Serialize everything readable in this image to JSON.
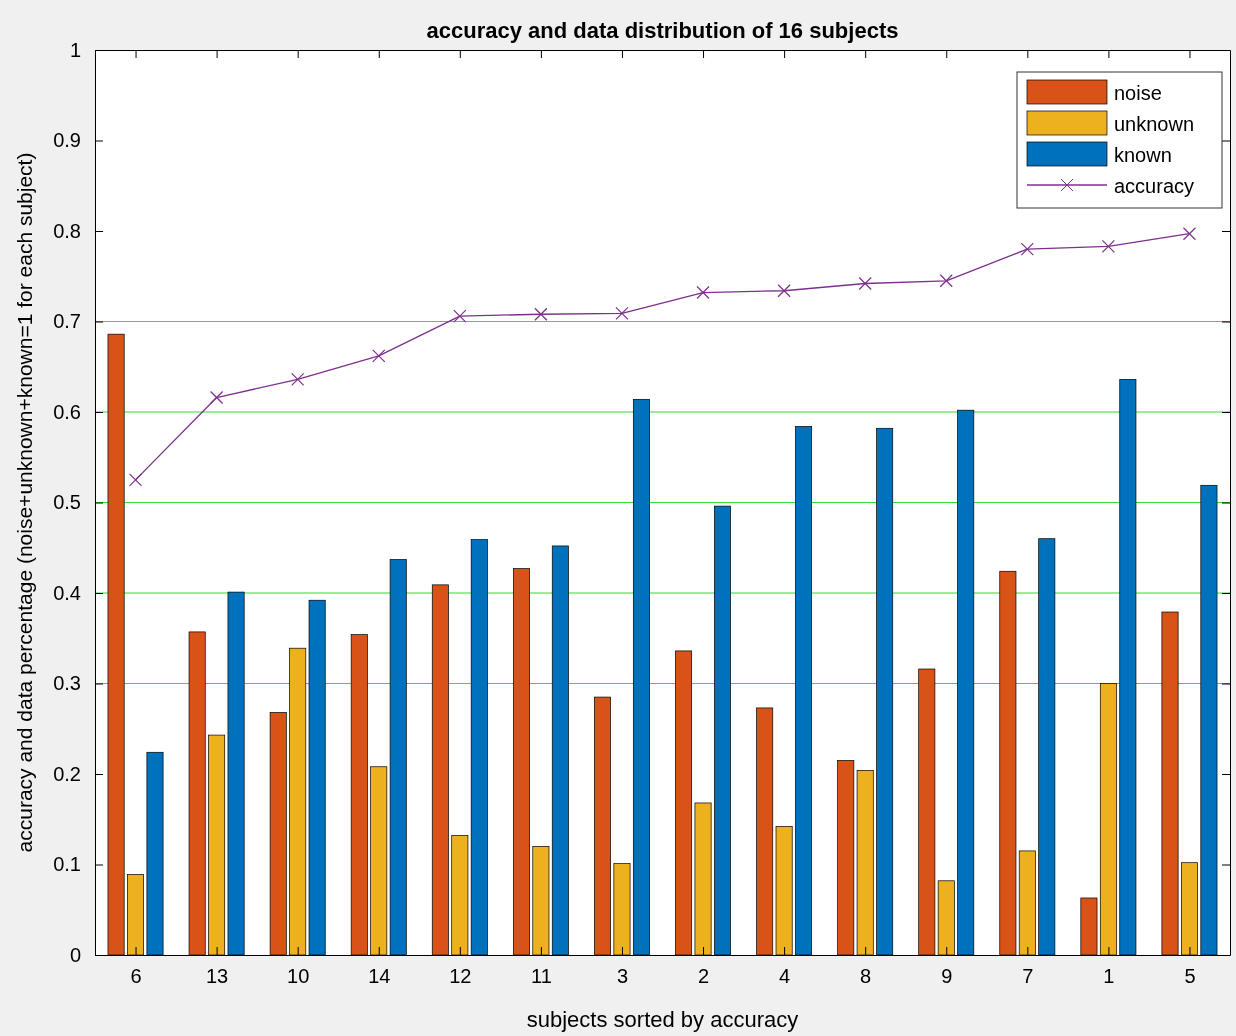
{
  "chart_data": {
    "type": "bar",
    "title": "accuracy and data distribution of 16 subjects",
    "xlabel": "subjects sorted by accuracy",
    "ylabel": "accuracy and data percentage (noise+unknown+known=1 for each subject)",
    "categories": [
      "6",
      "13",
      "10",
      "14",
      "12",
      "11",
      "3",
      "2",
      "4",
      "8",
      "9",
      "7",
      "1",
      "5"
    ],
    "series": [
      {
        "name": "noise",
        "color": "#d95319",
        "values": [
          0.686,
          0.357,
          0.268,
          0.354,
          0.409,
          0.427,
          0.285,
          0.336,
          0.273,
          0.215,
          0.316,
          0.424,
          0.063,
          0.379
        ]
      },
      {
        "name": "unknown",
        "color": "#edb120",
        "values": [
          0.089,
          0.243,
          0.339,
          0.208,
          0.132,
          0.12,
          0.101,
          0.168,
          0.142,
          0.204,
          0.082,
          0.115,
          0.3,
          0.102
        ]
      },
      {
        "name": "known",
        "color": "#0072bd",
        "values": [
          0.224,
          0.401,
          0.392,
          0.437,
          0.459,
          0.452,
          0.614,
          0.496,
          0.584,
          0.582,
          0.602,
          0.46,
          0.636,
          0.519
        ]
      },
      {
        "name": "accuracy",
        "type": "line",
        "color": "#7e2f8e",
        "marker": "cross",
        "values": [
          0.525,
          0.616,
          0.636,
          0.662,
          0.706,
          0.708,
          0.709,
          0.732,
          0.734,
          0.742,
          0.745,
          0.78,
          0.783,
          0.797
        ]
      }
    ],
    "ylim": [
      0,
      1
    ],
    "yticks": [
      0,
      0.1,
      0.2,
      0.3,
      0.4,
      0.5,
      0.6,
      0.7,
      0.8,
      0.9,
      1
    ],
    "ref_lines": [
      {
        "axis": "y",
        "value": 0.3,
        "color": "#33dd33"
      },
      {
        "axis": "y",
        "value": 0.4,
        "color": "#33dd33"
      },
      {
        "axis": "y",
        "value": 0.5,
        "color": "#33dd33"
      },
      {
        "axis": "y",
        "value": 0.6,
        "color": "#33dd33"
      },
      {
        "axis": "y",
        "value": 0.7,
        "color": "#33dd33"
      }
    ],
    "legend": "top right"
  }
}
